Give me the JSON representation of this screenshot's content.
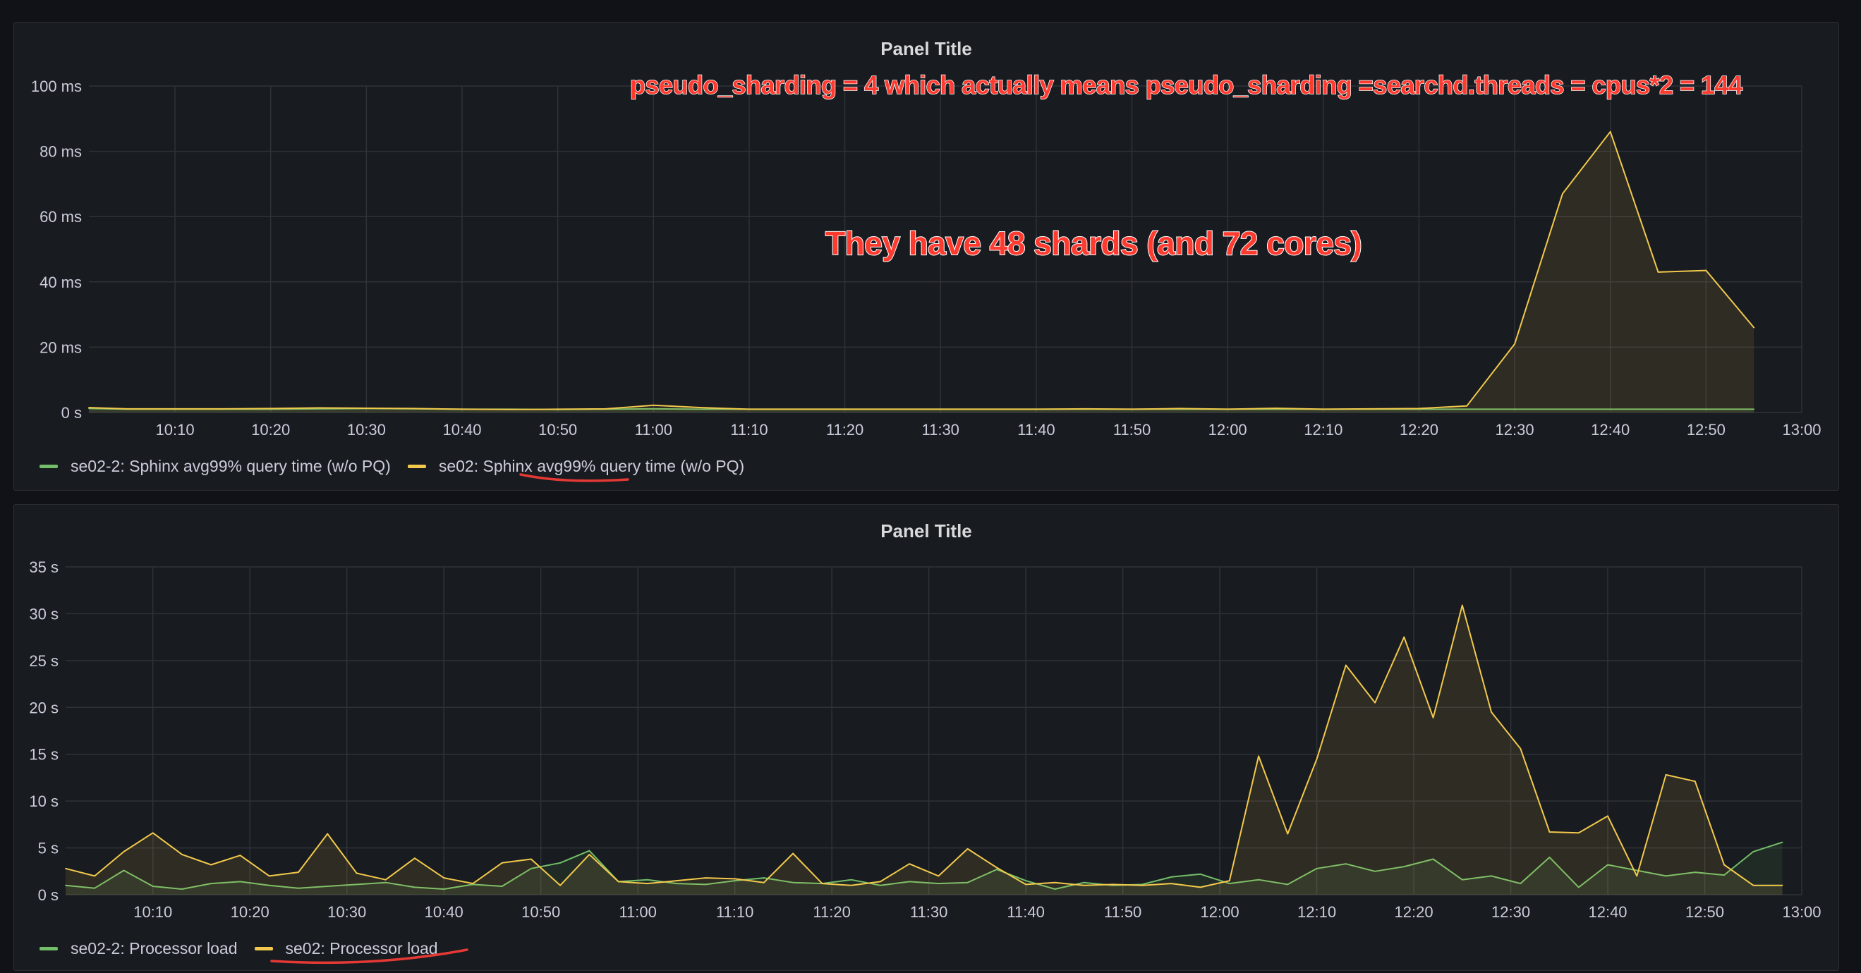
{
  "panels": [
    {
      "title": "Panel Title",
      "legend": [
        {
          "label": "se02-2: Sphinx avg99% query time (w/o PQ)",
          "color": "#73bf69"
        },
        {
          "label": "se02: Sphinx avg99% query time (w/o PQ)",
          "color": "#f2c94c"
        }
      ]
    },
    {
      "title": "Panel Title",
      "legend": [
        {
          "label": "se02-2: Processor load",
          "color": "#73bf69"
        },
        {
          "label": "se02: Processor load",
          "color": "#f2c94c"
        }
      ]
    }
  ],
  "annotations": {
    "top": "pseudo_sharding = 4 which actually means pseudo_sharding =searchd.threads = cpus*2 = 144",
    "middle": "They have 48 shards (and 72 cores)"
  },
  "chart_data": [
    {
      "type": "line",
      "title": "Panel Title",
      "x_unit": "minutes (10:00 = 600)",
      "xlim": [
        601,
        780
      ],
      "ylim": [
        0,
        100
      ],
      "y_ticks": [
        "0 s",
        "20 ms",
        "40 ms",
        "60 ms",
        "80 ms",
        "100 ms"
      ],
      "x_ticks": [
        "10:10",
        "10:20",
        "10:30",
        "10:40",
        "10:50",
        "11:00",
        "11:10",
        "11:20",
        "11:30",
        "11:40",
        "11:50",
        "12:00",
        "12:10",
        "12:20",
        "12:30",
        "12:40",
        "12:50",
        "13:00"
      ],
      "grid": true,
      "legend_position": "bottom-left",
      "series": [
        {
          "name": "se02-2: Sphinx avg99% query time (w/o PQ)",
          "color": "#73bf69",
          "x": [
            601,
            605,
            610,
            615,
            620,
            625,
            630,
            635,
            640,
            645,
            650,
            655,
            660,
            665,
            670,
            675,
            680,
            685,
            690,
            695,
            700,
            705,
            710,
            715,
            720,
            725,
            730,
            735,
            740,
            745,
            750,
            755,
            760,
            765,
            770,
            775
          ],
          "y": [
            1.2,
            1.0,
            1.0,
            1.0,
            1.0,
            1.1,
            1.2,
            1.1,
            1.0,
            1.0,
            0.9,
            1.0,
            1.1,
            1.0,
            1.0,
            1.0,
            1.0,
            1.0,
            1.0,
            1.0,
            1.0,
            1.0,
            1.0,
            1.0,
            1.0,
            1.0,
            1.0,
            1.0,
            1.0,
            1.0,
            1.0,
            1.0,
            1.0,
            1.0,
            1.0,
            1.0
          ]
        },
        {
          "name": "se02: Sphinx avg99% query time (w/o PQ)",
          "color": "#f2c94c",
          "x": [
            601,
            605,
            610,
            615,
            620,
            625,
            630,
            635,
            640,
            645,
            650,
            655,
            660,
            665,
            670,
            675,
            680,
            685,
            690,
            695,
            700,
            705,
            710,
            715,
            720,
            725,
            730,
            735,
            740,
            745,
            750,
            755,
            760,
            765,
            770,
            775
          ],
          "y": [
            1.5,
            1.1,
            1.1,
            1.1,
            1.2,
            1.4,
            1.3,
            1.2,
            1.0,
            0.9,
            1.0,
            1.1,
            2.2,
            1.5,
            1.0,
            1.0,
            1.0,
            1.0,
            1.0,
            1.0,
            1.0,
            1.1,
            1.0,
            1.2,
            1.0,
            1.3,
            1.0,
            1.1,
            1.2,
            2.0,
            21,
            67,
            86,
            43,
            43.5,
            26
          ]
        }
      ]
    },
    {
      "type": "area",
      "title": "Panel Title",
      "x_unit": "minutes (10:00 = 600)",
      "xlim": [
        601,
        780
      ],
      "ylim": [
        0,
        35
      ],
      "y_ticks": [
        "0 s",
        "5 s",
        "10 s",
        "15 s",
        "20 s",
        "25 s",
        "30 s",
        "35 s"
      ],
      "x_ticks": [
        "10:10",
        "10:20",
        "10:30",
        "10:40",
        "10:50",
        "11:00",
        "11:10",
        "11:20",
        "11:30",
        "11:40",
        "11:50",
        "12:00",
        "12:10",
        "12:20",
        "12:30",
        "12:40",
        "12:50",
        "13:00"
      ],
      "grid": true,
      "legend_position": "bottom-left",
      "series": [
        {
          "name": "se02-2: Processor load",
          "color": "#73bf69",
          "x": [
            601,
            604,
            607,
            610,
            613,
            616,
            619,
            622,
            625,
            628,
            631,
            634,
            637,
            640,
            643,
            646,
            649,
            652,
            655,
            658,
            661,
            664,
            667,
            670,
            673,
            676,
            679,
            682,
            685,
            688,
            691,
            694,
            697,
            700,
            703,
            706,
            709,
            712,
            715,
            718,
            721,
            724,
            727,
            730,
            733,
            736,
            739,
            742,
            745,
            748,
            751,
            754,
            757,
            760,
            763,
            766,
            769,
            772,
            775,
            778
          ],
          "y": [
            1.0,
            0.7,
            2.6,
            0.9,
            0.6,
            1.2,
            1.4,
            1.0,
            0.7,
            0.9,
            1.1,
            1.3,
            0.8,
            0.6,
            1.1,
            0.9,
            2.8,
            3.4,
            4.7,
            1.4,
            1.6,
            1.2,
            1.1,
            1.5,
            1.8,
            1.3,
            1.2,
            1.6,
            1.0,
            1.4,
            1.2,
            1.3,
            2.7,
            1.5,
            0.6,
            1.3,
            1.0,
            1.1,
            1.9,
            2.2,
            1.2,
            1.6,
            1.1,
            2.8,
            3.3,
            2.5,
            3.0,
            3.8,
            1.6,
            2.0,
            1.2,
            4.0,
            0.8,
            3.2,
            2.6,
            2.0,
            2.4,
            2.1,
            4.6,
            5.6
          ]
        },
        {
          "name": "se02: Processor load",
          "color": "#f2c94c",
          "x": [
            601,
            604,
            607,
            610,
            613,
            616,
            619,
            622,
            625,
            628,
            631,
            634,
            637,
            640,
            643,
            646,
            649,
            652,
            655,
            658,
            661,
            664,
            667,
            670,
            673,
            676,
            679,
            682,
            685,
            688,
            691,
            694,
            697,
            700,
            703,
            706,
            709,
            712,
            715,
            718,
            721,
            724,
            727,
            730,
            733,
            736,
            739,
            742,
            745,
            748,
            751,
            754,
            757,
            760,
            763,
            766,
            769,
            772,
            775,
            778
          ],
          "y": [
            2.8,
            2.0,
            4.6,
            6.6,
            4.3,
            3.2,
            4.2,
            2.0,
            2.4,
            6.5,
            2.3,
            1.6,
            3.9,
            1.8,
            1.2,
            3.4,
            3.8,
            1.0,
            4.3,
            1.4,
            1.2,
            1.5,
            1.8,
            1.7,
            1.3,
            4.4,
            1.2,
            1.0,
            1.4,
            3.3,
            2.0,
            4.9,
            2.9,
            1.1,
            1.3,
            1.0,
            1.1,
            1.0,
            1.2,
            0.8,
            1.5,
            14.8,
            6.5,
            14.5,
            24.5,
            20.5,
            27.5,
            18.9,
            30.9,
            19.5,
            15.6,
            6.7,
            6.6,
            8.4,
            2.0,
            12.8,
            12.1,
            3.2,
            1.0,
            1.0
          ]
        }
      ]
    }
  ]
}
